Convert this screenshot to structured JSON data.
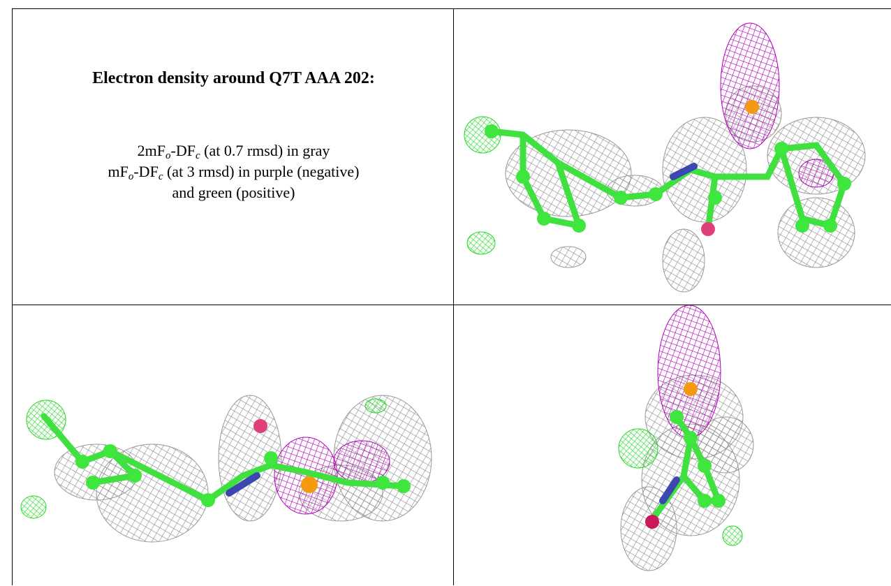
{
  "caption": {
    "title": "Electron density around Q7T AAA 202:",
    "lines": [
      [
        "2mF",
        "o",
        "-DF",
        "c",
        " (at 0.7 rmsd) in gray"
      ],
      [
        "mF",
        "o",
        "-DF",
        "c",
        " (at 3 rmsd) in purple (negative)"
      ],
      [
        "and green (positive)"
      ]
    ]
  }
}
